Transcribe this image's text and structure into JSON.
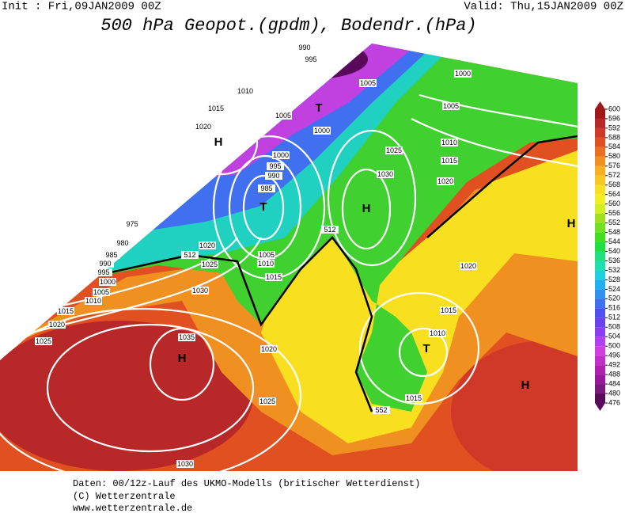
{
  "header": {
    "init": "Init : Fri,09JAN2009 00Z",
    "valid": "Valid: Thu,15JAN2009 00Z",
    "title": "500 hPa Geopot.(gpdm), Bodendr.(hPa)"
  },
  "colorbar": {
    "levels": [
      476,
      480,
      484,
      488,
      492,
      496,
      500,
      504,
      508,
      512,
      516,
      520,
      524,
      528,
      532,
      536,
      540,
      544,
      548,
      552,
      556,
      560,
      564,
      568,
      572,
      576,
      580,
      584,
      588,
      592,
      596,
      600
    ],
    "colors": [
      "#5a0a5a",
      "#7a1a7a",
      "#99199a",
      "#b020b0",
      "#c030c8",
      "#d040e0",
      "#b040f0",
      "#8a3cf0",
      "#6a40f0",
      "#5050f0",
      "#4070f0",
      "#3090f0",
      "#20b0f0",
      "#20d0e0",
      "#20e0b0",
      "#20e080",
      "#20e040",
      "#40e020",
      "#70e020",
      "#a0e020",
      "#d0f020",
      "#f0f020",
      "#f8e020",
      "#f8c820",
      "#f8b020",
      "#f09020",
      "#e87020",
      "#e05020",
      "#d03828",
      "#b82828",
      "#a01818"
    ]
  },
  "isobar_labels": [
    990,
    995,
    1005,
    1000,
    1005,
    1010,
    1015,
    1020,
    1005,
    1000,
    1010,
    1015,
    1025,
    1020,
    1030,
    1000,
    995,
    990,
    985,
    975,
    980,
    985,
    990,
    995,
    1000,
    1005,
    1010,
    1015,
    1020,
    1025,
    1020,
    1025,
    1005,
    1010,
    1015,
    1030,
    1020,
    1015,
    1010,
    1035,
    1020,
    1025,
    1015,
    1030,
    512,
    512,
    552
  ],
  "centers": [
    "H",
    "T",
    "T",
    "H",
    "H",
    "T",
    "H",
    "H"
  ],
  "footer": [
    "Daten: 00/12z-Lauf des UKMO-Modells (britischer Wetterdienst)",
    "(C) Wetterzentrale",
    "www.wetterzentrale.de"
  ]
}
